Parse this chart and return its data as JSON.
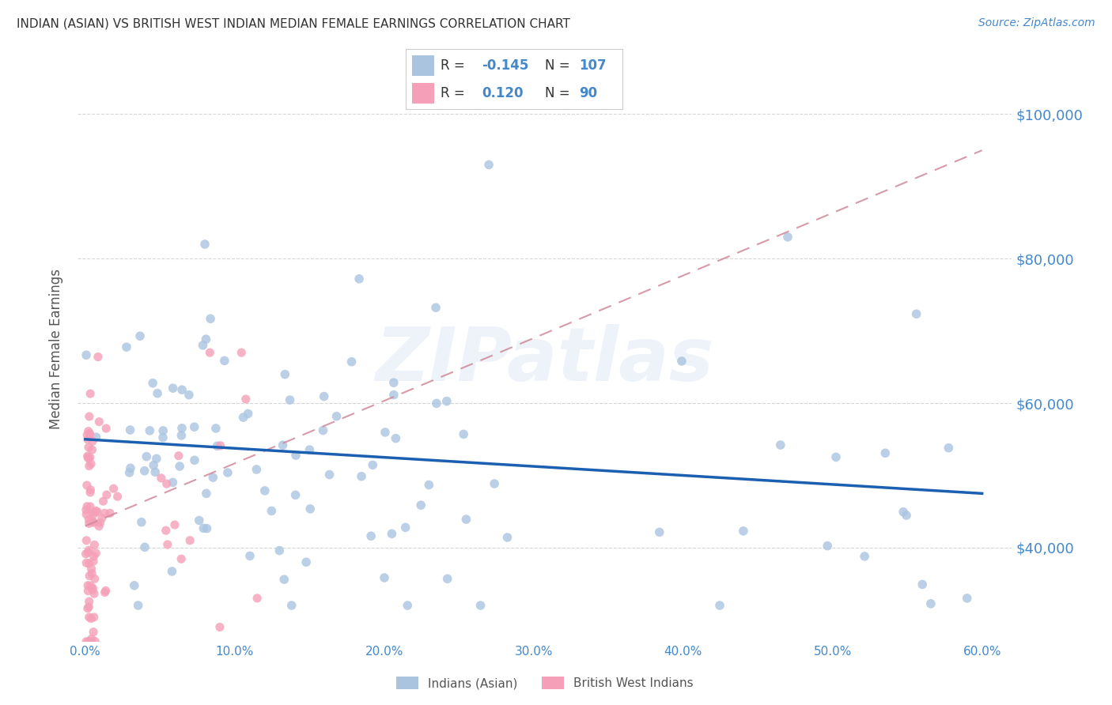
{
  "title": "INDIAN (ASIAN) VS BRITISH WEST INDIAN MEDIAN FEMALE EARNINGS CORRELATION CHART",
  "source": "Source: ZipAtlas.com",
  "ylabel": "Median Female Earnings",
  "ytick_values": [
    40000,
    60000,
    80000,
    100000
  ],
  "xlim": [
    -0.005,
    0.62
  ],
  "ylim": [
    27000,
    108000
  ],
  "blue_R": "-0.145",
  "blue_N": 107,
  "pink_R": "0.120",
  "pink_N": 90,
  "blue_color": "#aac4e0",
  "pink_color": "#f5a0b8",
  "blue_line_color": "#1a5fb0",
  "pink_line_color": "#e06080",
  "pink_dash_color": "#d08898",
  "legend_blue_label": "Indians (Asian)",
  "legend_pink_label": "British West Indians",
  "watermark": "ZIPatlas",
  "title_color": "#333333",
  "axis_label_color": "#555555",
  "tick_color": "#4488cc",
  "grid_color": "#cccccc",
  "blue_trend_x0": 0.0,
  "blue_trend_y0": 55000,
  "blue_trend_x1": 0.6,
  "blue_trend_y1": 47500,
  "pink_trend_x0": 0.0,
  "pink_trend_y0": 43000,
  "pink_trend_x1": 0.6,
  "pink_trend_y1": 95000
}
